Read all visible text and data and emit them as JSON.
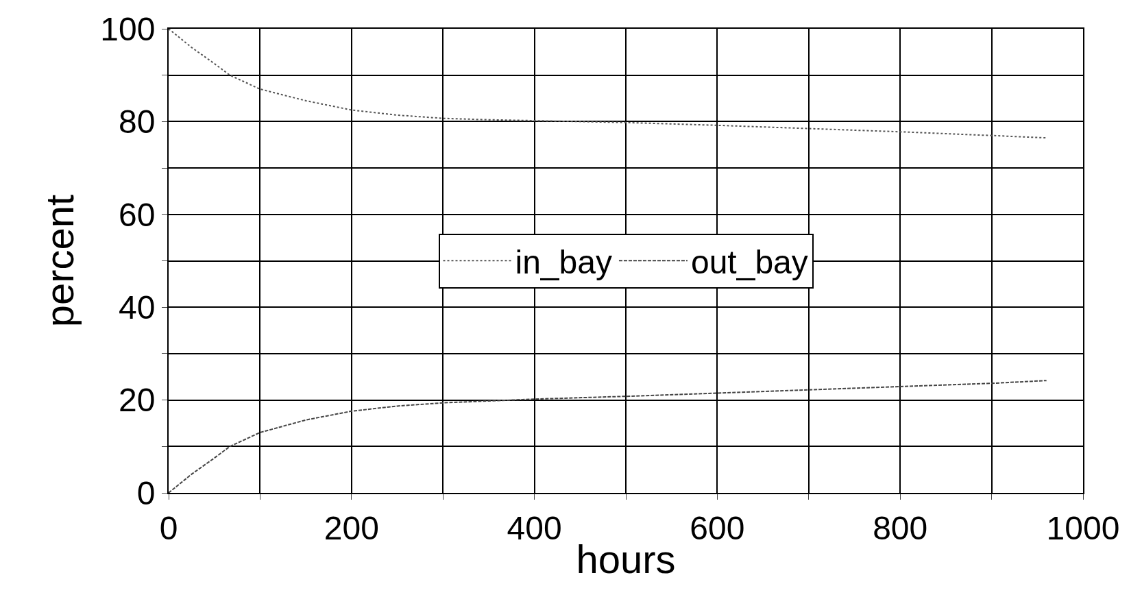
{
  "chart_data": {
    "type": "line",
    "xlabel": "hours",
    "ylabel": "percent",
    "x": [
      0,
      25,
      50,
      67,
      100,
      150,
      200,
      250,
      300,
      350,
      400,
      500,
      600,
      700,
      800,
      900,
      960
    ],
    "series": [
      {
        "name": "in_bay",
        "color": "#555555",
        "line_style": "dotted",
        "values": [
          100,
          96,
          92.5,
          90,
          87,
          84.5,
          82.5,
          81.4,
          80.7,
          80.4,
          80.2,
          79.8,
          79.2,
          78.5,
          77.8,
          77,
          76.5
        ]
      },
      {
        "name": "out_bay",
        "color": "#444444",
        "line_style": "dashed",
        "values": [
          0,
          4,
          7.5,
          10,
          13,
          15.7,
          17.6,
          18.7,
          19.4,
          19.8,
          20.2,
          20.8,
          21.5,
          22.2,
          22.9,
          23.6,
          24.2
        ]
      }
    ],
    "xlim": [
      0,
      1000
    ],
    "xticks": [
      0,
      {
        "value": 100,
        "label": null
      },
      200,
      {
        "value": 300,
        "label": null
      },
      400,
      {
        "value": 500,
        "label": null
      },
      600,
      {
        "value": 700,
        "label": null
      },
      800,
      {
        "value": 900,
        "label": null
      },
      1000
    ],
    "ylim": [
      0,
      100
    ],
    "yticks": [
      0,
      {
        "value": 10,
        "label": null
      },
      20,
      {
        "value": 30,
        "label": null
      },
      40,
      {
        "value": 50,
        "label": null
      },
      60,
      {
        "value": 70,
        "label": null
      },
      80,
      {
        "value": 90,
        "label": null
      },
      100
    ],
    "grid": true,
    "legend": "center",
    "marker": "none"
  }
}
